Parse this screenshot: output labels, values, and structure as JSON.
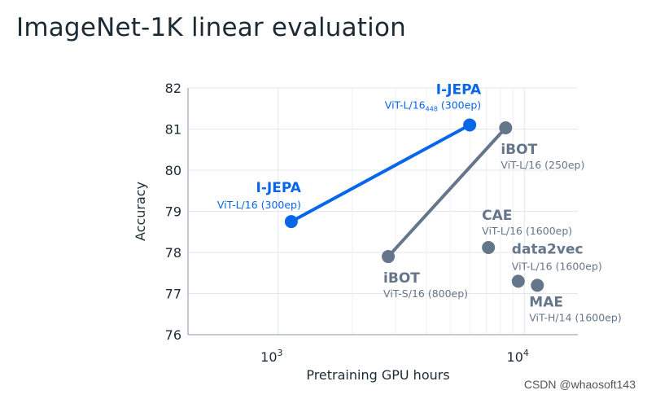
{
  "title": "ImageNet-1K linear evaluation",
  "watermark": "CSDN @whaosoft143",
  "colors": {
    "ijepa": "#0866e8",
    "other": "#65768a",
    "grid": "#e3e7ec",
    "axis": "#8a96a3"
  },
  "chart_data": {
    "type": "scatter",
    "title": "ImageNet-1K linear evaluation",
    "xlabel": "Pretraining GPU hours",
    "ylabel": "Accuracy",
    "xscale": "log",
    "xlim": [
      430,
      16500
    ],
    "ylim": [
      76,
      82
    ],
    "yticks": [
      76,
      77,
      78,
      79,
      80,
      81,
      82
    ],
    "xticks": [
      {
        "value": 1000,
        "base": "10",
        "exp": "3"
      },
      {
        "value": 10000,
        "base": "10",
        "exp": "4"
      }
    ],
    "minor_grid_x": [
      2000,
      3000,
      4000,
      5000,
      6000,
      7000,
      8000,
      9000
    ],
    "series": [
      {
        "name": "I-JEPA",
        "color": "#0866e8",
        "points": [
          {
            "x": 1130,
            "y": 78.75
          },
          {
            "x": 6000,
            "y": 81.1
          }
        ]
      },
      {
        "name": "iBOT",
        "color": "#65768a",
        "points": [
          {
            "x": 2800,
            "y": 77.9
          },
          {
            "x": 8400,
            "y": 81.03
          }
        ]
      },
      {
        "name": "CAE",
        "color": "#65768a",
        "points": [
          {
            "x": 7150,
            "y": 78.12
          }
        ]
      },
      {
        "name": "data2vec",
        "color": "#65768a",
        "points": [
          {
            "x": 9450,
            "y": 77.3
          }
        ]
      },
      {
        "name": "MAE",
        "color": "#65768a",
        "points": [
          {
            "x": 11300,
            "y": 77.2
          }
        ]
      }
    ],
    "annotations": [
      {
        "title": "I-JEPA",
        "sub": "ViT-L/16 (300ep)",
        "x": 1130,
        "y": 78.75,
        "color": "#0866e8",
        "anchor": "end",
        "pos": "above"
      },
      {
        "title": "I-JEPA",
        "sub": "ViT-L/16",
        "sub_subscript": "448",
        "sub_suffix": " (300ep)",
        "x": 6000,
        "y": 81.1,
        "color": "#0866e8",
        "anchor": "end",
        "pos": "above"
      },
      {
        "title": "iBOT",
        "sub": "ViT-L/16 (250ep)",
        "x": 8400,
        "y": 81.03,
        "color": "#65768a",
        "anchor": "start",
        "pos": "below"
      },
      {
        "title": "iBOT",
        "sub": "ViT-S/16 (800ep)",
        "x": 2800,
        "y": 77.9,
        "color": "#65768a",
        "anchor": "start",
        "pos": "below"
      },
      {
        "title": "CAE",
        "sub": "ViT-L/16 (1600ep)",
        "x": 7150,
        "y": 78.12,
        "color": "#65768a",
        "anchor": "start",
        "pos": "above"
      },
      {
        "title": "data2vec",
        "sub": "ViT-L/16 (1600ep)",
        "x": 9450,
        "y": 77.3,
        "color": "#65768a",
        "anchor": "start",
        "pos": "above"
      },
      {
        "title": "MAE",
        "sub": "ViT-H/14 (1600ep)",
        "x": 11300,
        "y": 77.2,
        "color": "#65768a",
        "anchor": "start",
        "pos": "below"
      }
    ]
  }
}
